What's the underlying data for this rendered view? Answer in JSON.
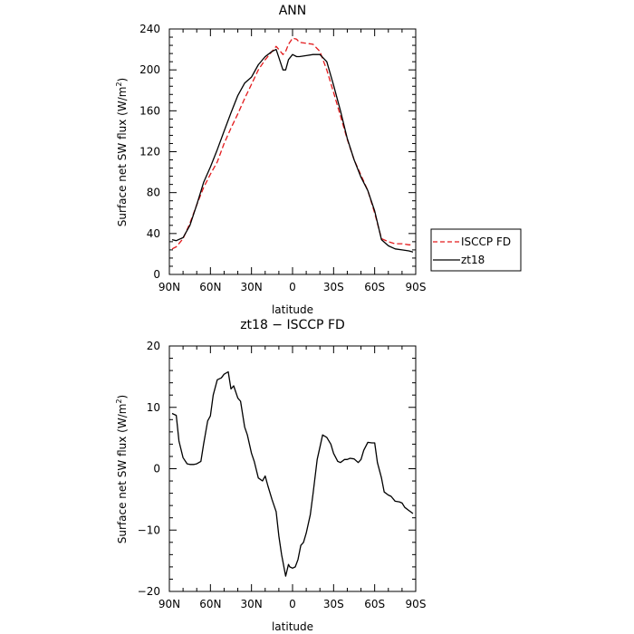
{
  "chart_data": [
    {
      "type": "line",
      "title": "ANN",
      "xlabel": "latitude",
      "ylabel": "Surface net SW flux (W/m²)",
      "ylabel_main": "Surface net SW flux (W/m",
      "ylabel_sup": "2",
      "ylabel_close": ")",
      "xlim": [
        -90,
        90
      ],
      "ylim": [
        0,
        240
      ],
      "x_ticks": [
        {
          "value": -90,
          "label": "90N"
        },
        {
          "value": -60,
          "label": "60N"
        },
        {
          "value": -30,
          "label": "30N"
        },
        {
          "value": 0,
          "label": "0"
        },
        {
          "value": 30,
          "label": "30S"
        },
        {
          "value": 60,
          "label": "60S"
        },
        {
          "value": 90,
          "label": "90S"
        }
      ],
      "y_ticks": [
        {
          "value": 0,
          "label": "0"
        },
        {
          "value": 40,
          "label": "40"
        },
        {
          "value": 80,
          "label": "80"
        },
        {
          "value": 120,
          "label": "120"
        },
        {
          "value": 160,
          "label": "160"
        },
        {
          "value": 200,
          "label": "200"
        },
        {
          "value": 240,
          "label": "240"
        }
      ],
      "grid": false,
      "legend": "right, outside plot",
      "series": [
        {
          "name": "ISCCP FD",
          "color": "#e31a1c",
          "dash": "dashed",
          "x": [
            -88,
            -85,
            -80,
            -75,
            -70,
            -65,
            -60,
            -55,
            -50,
            -45,
            -40,
            -35,
            -30,
            -25,
            -20,
            -15,
            -12,
            -10,
            -7,
            -5,
            -3,
            0,
            3,
            5,
            10,
            15,
            20,
            25,
            30,
            35,
            40,
            45,
            50,
            55,
            60,
            65,
            70,
            75,
            80,
            85,
            88
          ],
          "y": [
            25,
            27,
            35,
            50,
            68,
            85,
            98,
            110,
            128,
            143,
            157,
            172,
            186,
            200,
            210,
            218,
            223,
            220,
            215,
            218,
            225,
            231,
            230,
            227,
            226,
            225,
            218,
            200,
            178,
            155,
            132,
            112,
            97,
            82,
            60,
            35,
            32,
            30,
            30,
            29,
            29
          ]
        },
        {
          "name": "zt18",
          "color": "#000000",
          "dash": "solid",
          "x": [
            -88,
            -85,
            -80,
            -75,
            -70,
            -65,
            -60,
            -55,
            -50,
            -45,
            -40,
            -35,
            -30,
            -25,
            -20,
            -15,
            -12,
            -10,
            -7,
            -5,
            -3,
            0,
            3,
            5,
            10,
            15,
            20,
            25,
            30,
            35,
            40,
            45,
            50,
            55,
            60,
            65,
            70,
            75,
            80,
            85,
            88
          ],
          "y": [
            34,
            33,
            36,
            48,
            68,
            90,
            105,
            122,
            140,
            158,
            175,
            187,
            193,
            205,
            213,
            218,
            220,
            212,
            200,
            200,
            210,
            215,
            213,
            213,
            214,
            215,
            215,
            208,
            185,
            160,
            133,
            112,
            95,
            82,
            62,
            34,
            28,
            25,
            24,
            23,
            22
          ]
        }
      ]
    },
    {
      "type": "line",
      "title": "zt18 − ISCCP FD",
      "xlabel": "latitude",
      "ylabel": "Surface net SW flux (W/m²)",
      "ylabel_main": "Surface net SW flux (W/m",
      "ylabel_sup": "2",
      "ylabel_close": ")",
      "xlim": [
        -90,
        90
      ],
      "ylim": [
        -20,
        20
      ],
      "x_ticks": [
        {
          "value": -90,
          "label": "90N"
        },
        {
          "value": -60,
          "label": "60N"
        },
        {
          "value": -30,
          "label": "30N"
        },
        {
          "value": 0,
          "label": "0"
        },
        {
          "value": 30,
          "label": "30S"
        },
        {
          "value": 60,
          "label": "60S"
        },
        {
          "value": 90,
          "label": "90S"
        }
      ],
      "y_ticks": [
        {
          "value": -20,
          "label": "−20"
        },
        {
          "value": -10,
          "label": "−10"
        },
        {
          "value": 0,
          "label": "0"
        },
        {
          "value": 10,
          "label": "10"
        },
        {
          "value": 20,
          "label": "20"
        }
      ],
      "grid": false,
      "series": [
        {
          "color": "#000000",
          "dash": "solid",
          "x": [
            -88,
            -85,
            -83,
            -80,
            -77,
            -75,
            -72,
            -70,
            -67,
            -65,
            -62,
            -60,
            -58,
            -55,
            -52,
            -50,
            -47,
            -45,
            -43,
            -40,
            -38,
            -35,
            -33,
            -30,
            -28,
            -25,
            -22,
            -20,
            -18,
            -15,
            -12,
            -10,
            -8,
            -5,
            -3,
            -2,
            0,
            2,
            4,
            6,
            8,
            10,
            13,
            15,
            18,
            20,
            22,
            25,
            28,
            30,
            33,
            35,
            38,
            40,
            42,
            45,
            48,
            50,
            52,
            55,
            58,
            60,
            62,
            65,
            67,
            70,
            72,
            75,
            78,
            80,
            82,
            85,
            88
          ],
          "y": [
            9,
            8.7,
            4.5,
            1.8,
            0.8,
            0.7,
            0.7,
            0.8,
            1.2,
            4,
            7.8,
            8.6,
            12,
            14.5,
            14.8,
            15.4,
            15.8,
            13,
            13.5,
            11.5,
            11,
            6.8,
            5.5,
            2.5,
            1.2,
            -1.5,
            -2,
            -1.2,
            -2.8,
            -5,
            -7,
            -11,
            -14,
            -17.5,
            -15.6,
            -16,
            -16.2,
            -16,
            -14.8,
            -12.5,
            -12,
            -10.5,
            -7.5,
            -4,
            1.5,
            3.5,
            5.5,
            5.1,
            4,
            2.5,
            1.2,
            1,
            1.5,
            1.5,
            1.7,
            1.6,
            1,
            1.5,
            3,
            4.3,
            4.2,
            4.2,
            1,
            -1.5,
            -3.8,
            -4.3,
            -4.5,
            -5.3,
            -5.4,
            -5.6,
            -6.3,
            -6.8,
            -7.3
          ]
        }
      ]
    }
  ]
}
